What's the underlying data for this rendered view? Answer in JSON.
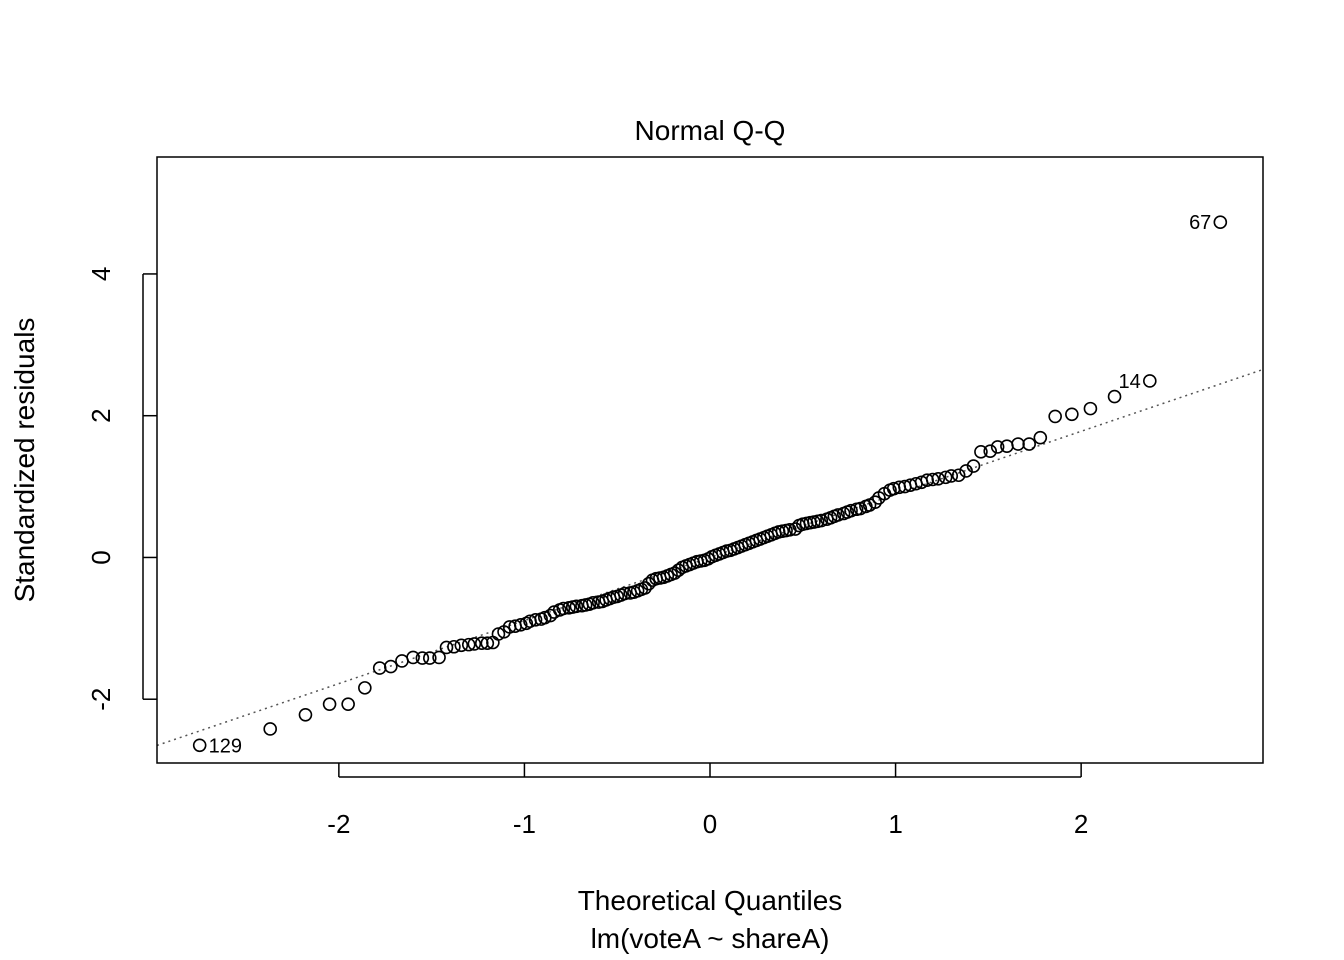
{
  "chart_data": {
    "type": "scatter",
    "title": "Normal Q-Q",
    "xlabel": "Theoretical Quantiles",
    "subtitle": "lm(voteA ~ shareA)",
    "ylabel": "Standardized residuals",
    "xlim": [
      -2.98,
      2.98
    ],
    "ylim": [
      -2.9,
      5.65
    ],
    "x_ticks": [
      -2,
      -1,
      0,
      1,
      2
    ],
    "x_tick_labels": [
      "-2",
      "-1",
      "0",
      "1",
      "2"
    ],
    "y_ticks": [
      -2,
      0,
      2,
      4
    ],
    "y_tick_labels": [
      "-2",
      "0",
      "2",
      "4"
    ],
    "reference_line": {
      "intercept": 0.0,
      "slope": 0.89,
      "style": "dotted"
    },
    "grid": false,
    "labeled_points": [
      {
        "label": "67",
        "x": 2.75,
        "y": 4.73
      },
      {
        "label": "14",
        "x": 2.37,
        "y": 2.49
      },
      {
        "label": "129",
        "x": -2.75,
        "y": -2.65
      }
    ],
    "points": [
      [
        -2.75,
        -2.65
      ],
      [
        -2.37,
        -2.42
      ],
      [
        -2.18,
        -2.22
      ],
      [
        -2.05,
        -2.07
      ],
      [
        -1.95,
        -2.07
      ],
      [
        -1.86,
        -1.84
      ],
      [
        -1.78,
        -1.56
      ],
      [
        -1.72,
        -1.54
      ],
      [
        -1.66,
        -1.46
      ],
      [
        -1.6,
        -1.41
      ],
      [
        -1.55,
        -1.42
      ],
      [
        -1.51,
        -1.42
      ],
      [
        -1.46,
        -1.41
      ],
      [
        -1.42,
        -1.27
      ],
      [
        -1.38,
        -1.26
      ],
      [
        -1.34,
        -1.24
      ],
      [
        -1.3,
        -1.23
      ],
      [
        -1.27,
        -1.22
      ],
      [
        -1.23,
        -1.21
      ],
      [
        -1.2,
        -1.21
      ],
      [
        -1.17,
        -1.2
      ],
      [
        -1.14,
        -1.08
      ],
      [
        -1.11,
        -1.05
      ],
      [
        -1.08,
        -0.98
      ],
      [
        -1.05,
        -0.97
      ],
      [
        -1.02,
        -0.95
      ],
      [
        -0.99,
        -0.93
      ],
      [
        -0.97,
        -0.9
      ],
      [
        -0.94,
        -0.88
      ],
      [
        -0.91,
        -0.87
      ],
      [
        -0.89,
        -0.85
      ],
      [
        -0.86,
        -0.82
      ],
      [
        -0.84,
        -0.77
      ],
      [
        -0.81,
        -0.74
      ],
      [
        -0.79,
        -0.72
      ],
      [
        -0.76,
        -0.71
      ],
      [
        -0.74,
        -0.7
      ],
      [
        -0.72,
        -0.69
      ],
      [
        -0.69,
        -0.68
      ],
      [
        -0.67,
        -0.67
      ],
      [
        -0.65,
        -0.66
      ],
      [
        -0.63,
        -0.64
      ],
      [
        -0.6,
        -0.63
      ],
      [
        -0.58,
        -0.62
      ],
      [
        -0.56,
        -0.6
      ],
      [
        -0.54,
        -0.58
      ],
      [
        -0.52,
        -0.56
      ],
      [
        -0.5,
        -0.55
      ],
      [
        -0.48,
        -0.53
      ],
      [
        -0.46,
        -0.51
      ],
      [
        -0.43,
        -0.5
      ],
      [
        -0.41,
        -0.49
      ],
      [
        -0.39,
        -0.47
      ],
      [
        -0.37,
        -0.45
      ],
      [
        -0.35,
        -0.43
      ],
      [
        -0.33,
        -0.37
      ],
      [
        -0.31,
        -0.32
      ],
      [
        -0.29,
        -0.3
      ],
      [
        -0.27,
        -0.29
      ],
      [
        -0.25,
        -0.28
      ],
      [
        -0.23,
        -0.26
      ],
      [
        -0.21,
        -0.24
      ],
      [
        -0.19,
        -0.22
      ],
      [
        -0.17,
        -0.18
      ],
      [
        -0.15,
        -0.14
      ],
      [
        -0.13,
        -0.12
      ],
      [
        -0.11,
        -0.1
      ],
      [
        -0.09,
        -0.08
      ],
      [
        -0.07,
        -0.06
      ],
      [
        -0.05,
        -0.05
      ],
      [
        -0.03,
        -0.04
      ],
      [
        -0.01,
        -0.02
      ],
      [
        0.01,
        0.01
      ],
      [
        0.03,
        0.03
      ],
      [
        0.05,
        0.05
      ],
      [
        0.07,
        0.07
      ],
      [
        0.09,
        0.09
      ],
      [
        0.11,
        0.1
      ],
      [
        0.13,
        0.12
      ],
      [
        0.15,
        0.14
      ],
      [
        0.17,
        0.16
      ],
      [
        0.19,
        0.18
      ],
      [
        0.21,
        0.2
      ],
      [
        0.23,
        0.22
      ],
      [
        0.25,
        0.24
      ],
      [
        0.27,
        0.26
      ],
      [
        0.29,
        0.28
      ],
      [
        0.31,
        0.3
      ],
      [
        0.33,
        0.32
      ],
      [
        0.35,
        0.34
      ],
      [
        0.37,
        0.36
      ],
      [
        0.39,
        0.37
      ],
      [
        0.41,
        0.38
      ],
      [
        0.43,
        0.39
      ],
      [
        0.46,
        0.4
      ],
      [
        0.48,
        0.45
      ],
      [
        0.5,
        0.47
      ],
      [
        0.52,
        0.48
      ],
      [
        0.54,
        0.49
      ],
      [
        0.56,
        0.5
      ],
      [
        0.58,
        0.51
      ],
      [
        0.6,
        0.52
      ],
      [
        0.63,
        0.54
      ],
      [
        0.65,
        0.56
      ],
      [
        0.67,
        0.58
      ],
      [
        0.69,
        0.6
      ],
      [
        0.72,
        0.62
      ],
      [
        0.74,
        0.64
      ],
      [
        0.76,
        0.66
      ],
      [
        0.79,
        0.68
      ],
      [
        0.81,
        0.69
      ],
      [
        0.84,
        0.72
      ],
      [
        0.86,
        0.74
      ],
      [
        0.89,
        0.78
      ],
      [
        0.91,
        0.84
      ],
      [
        0.94,
        0.9
      ],
      [
        0.97,
        0.95
      ],
      [
        0.99,
        0.97
      ],
      [
        1.02,
        0.99
      ],
      [
        1.05,
        1.0
      ],
      [
        1.08,
        1.02
      ],
      [
        1.11,
        1.04
      ],
      [
        1.14,
        1.06
      ],
      [
        1.17,
        1.09
      ],
      [
        1.2,
        1.1
      ],
      [
        1.23,
        1.11
      ],
      [
        1.27,
        1.13
      ],
      [
        1.3,
        1.15
      ],
      [
        1.34,
        1.16
      ],
      [
        1.38,
        1.22
      ],
      [
        1.42,
        1.29
      ],
      [
        1.46,
        1.49
      ],
      [
        1.51,
        1.5
      ],
      [
        1.55,
        1.56
      ],
      [
        1.6,
        1.57
      ],
      [
        1.66,
        1.6
      ],
      [
        1.72,
        1.6
      ],
      [
        1.78,
        1.69
      ],
      [
        1.86,
        1.99
      ],
      [
        1.95,
        2.02
      ],
      [
        2.05,
        2.1
      ],
      [
        2.18,
        2.27
      ],
      [
        2.37,
        2.49
      ],
      [
        2.75,
        4.73
      ]
    ]
  }
}
